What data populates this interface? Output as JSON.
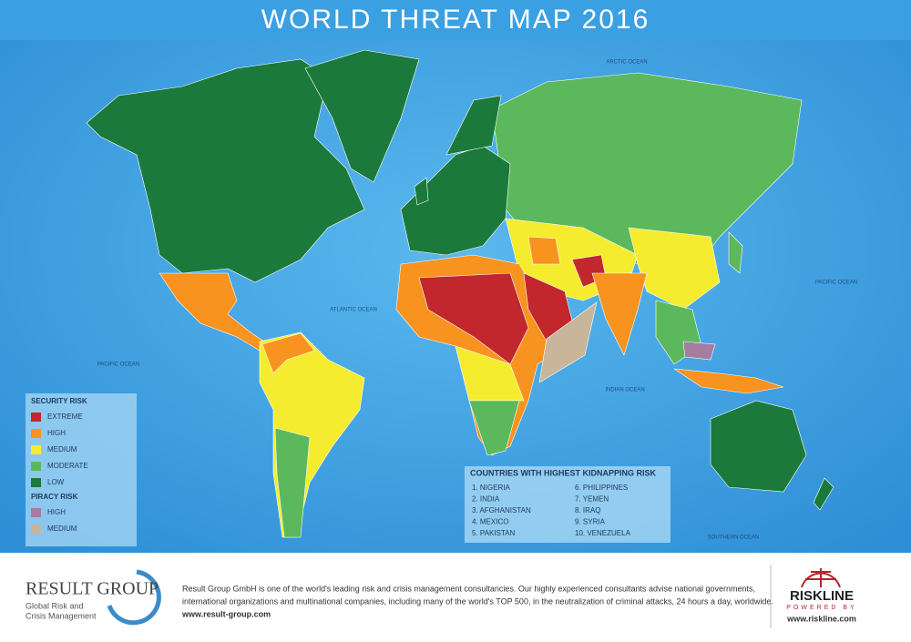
{
  "header": {
    "title": "WORLD THREAT MAP 2016"
  },
  "ocean_labels": [
    "ARCTIC OCEAN",
    "ATLANTIC OCEAN",
    "PACIFIC OCEAN",
    "PACIFIC OCEAN",
    "INDIAN OCEAN",
    "SOUTHERN OCEAN"
  ],
  "legend": {
    "security_title": "SECURITY RISK",
    "security": [
      {
        "label": "EXTREME",
        "color": "#c1272d"
      },
      {
        "label": "HIGH",
        "color": "#f7931e"
      },
      {
        "label": "MEDIUM",
        "color": "#f5ec2f"
      },
      {
        "label": "MODERATE",
        "color": "#5cb85c"
      },
      {
        "label": "LOW",
        "color": "#1b7a3b"
      }
    ],
    "piracy_title": "PIRACY RISK",
    "piracy": [
      {
        "label": "HIGH",
        "color": "#a67ca0"
      },
      {
        "label": "MEDIUM",
        "color": "#c8b59a"
      }
    ]
  },
  "kidnapping": {
    "title": "COUNTRIES WITH HIGHEST KIDNAPPING RISK",
    "items": [
      "1. NIGERIA",
      "2. INDIA",
      "3. AFGHANISTAN",
      "4. MEXICO",
      "5. PAKISTAN",
      "6. PHILIPPINES",
      "7. YEMEN",
      "8. IRAQ",
      "9. SYRIA",
      "10. VENEZUELA"
    ]
  },
  "footer": {
    "brand": "RESULT GROUP",
    "tagline_1": "Global Risk and",
    "tagline_2": "Crisis Management",
    "text_1": "Result Group GmbH is one of the world's leading risk and crisis management consultancies. Our highly experienced consultants advise national governments,",
    "text_2": "international organizations and multinational companies, including many of the world's TOP 500, in the neutralization of criminal attacks, 24 hours a day, worldwide.",
    "url": "www.result-group.com",
    "riskline": "RISKLINE",
    "powered": "POWERED BY",
    "riskline_url": "www.riskline.com"
  }
}
